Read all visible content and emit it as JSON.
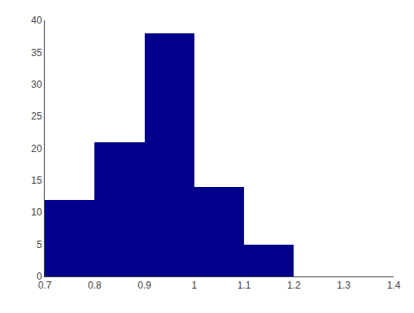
{
  "chart_data": {
    "type": "histogram",
    "bins": [
      0.7,
      0.8,
      0.9,
      1.0,
      1.1,
      1.2
    ],
    "values": [
      12,
      21,
      38,
      14,
      5
    ],
    "color": "#00008B",
    "xlim": [
      0.7,
      1.4
    ],
    "xticks": [
      0.7,
      0.8,
      0.9,
      1,
      1.1,
      1.2,
      1.3,
      1.4
    ],
    "ylim": [
      0,
      40
    ],
    "yticks": [
      0,
      5,
      10,
      15,
      20,
      25,
      30,
      35,
      40
    ],
    "grid": false
  }
}
